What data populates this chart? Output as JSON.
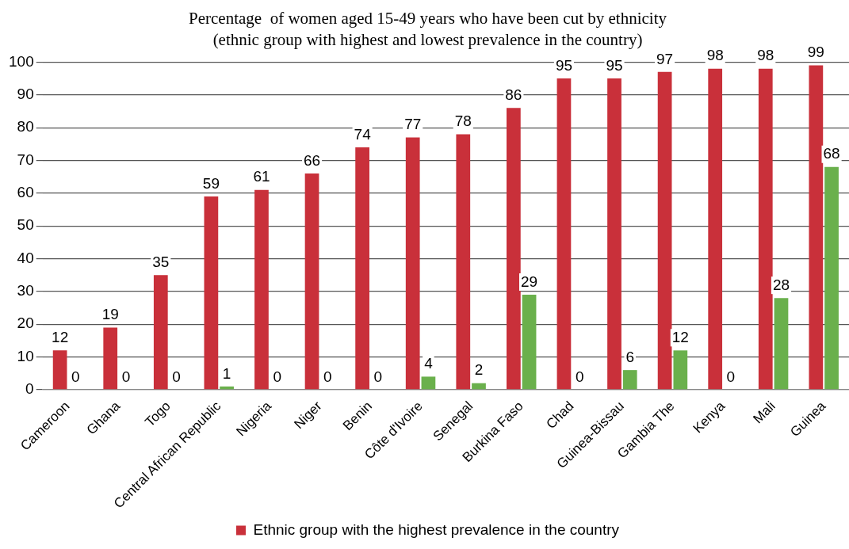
{
  "chart_data": {
    "type": "bar",
    "title": "Percentage  of women aged 15-49 years who have been cut by ethnicity",
    "subtitle": "(ethnic group with highest and lowest prevalence in the country)",
    "categories": [
      "Cameroon",
      "Ghana",
      "Togo",
      "Central African Republic",
      "Nigeria",
      "Niger",
      "Benin",
      "Côte d'Ivoire",
      "Senegal",
      "Burkina Faso",
      "Chad",
      "Guinea-Bissau",
      "Gambia The",
      "Kenya",
      "Mali",
      "Guinea"
    ],
    "series": [
      {
        "name": "Ethnic group with the highest prevalence in the country",
        "color": "#c9303a",
        "values": [
          12,
          19,
          35,
          59,
          61,
          66,
          74,
          77,
          78,
          86,
          95,
          95,
          97,
          98,
          98,
          99
        ]
      },
      {
        "color": "#6ab04c",
        "values": [
          0,
          0,
          0,
          1,
          0,
          0,
          0,
          4,
          2,
          29,
          0,
          6,
          12,
          0,
          28,
          68
        ]
      }
    ],
    "ylim": [
      0,
      100
    ],
    "yticks": [
      0,
      10,
      20,
      30,
      40,
      50,
      60,
      70,
      80,
      90,
      100
    ],
    "grid": "y",
    "legend": "bottom",
    "data_labels": true
  }
}
